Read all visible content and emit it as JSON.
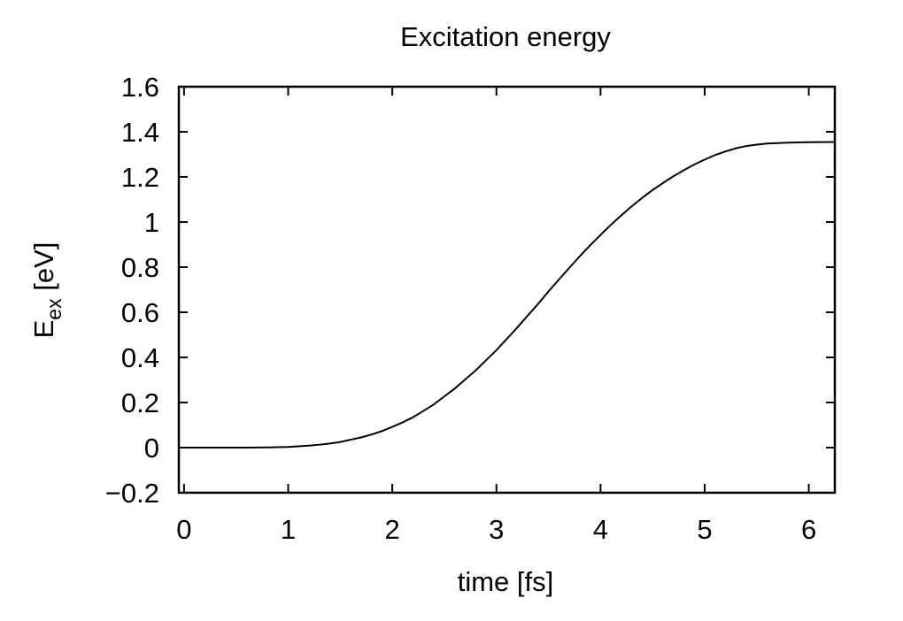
{
  "chart_data": {
    "type": "line",
    "title": "Excitation energy",
    "xlabel": "time [fs]",
    "ylabel": {
      "main": "E",
      "sub": "ex",
      "unit": " [eV]"
    },
    "xlim": [
      -0.05,
      6.25
    ],
    "ylim": [
      -0.2,
      1.6
    ],
    "xticks": [
      "0",
      "1",
      "2",
      "3",
      "4",
      "5",
      "6"
    ],
    "yticks": [
      "−0.2",
      "0",
      "0.2",
      "0.4",
      "0.6",
      "0.8",
      "1",
      "1.2",
      "1.4",
      "1.6"
    ],
    "grid": false,
    "series": [
      {
        "x": [
          0,
          0.2,
          0.4,
          0.6,
          0.8,
          1.0,
          1.1,
          1.2,
          1.3,
          1.4,
          1.5,
          1.6,
          1.7,
          1.8,
          1.9,
          2.0,
          2.1,
          2.2,
          2.3,
          2.4,
          2.5,
          2.6,
          2.7,
          2.8,
          2.9,
          3.0,
          3.1,
          3.2,
          3.3,
          3.4,
          3.5,
          3.6,
          3.7,
          3.8,
          3.9,
          4.0,
          4.1,
          4.2,
          4.3,
          4.4,
          4.5,
          4.6,
          4.7,
          4.8,
          4.9,
          5.0,
          5.1,
          5.2,
          5.3,
          5.4,
          5.5,
          5.6,
          5.8,
          6.0,
          6.25
        ],
        "y": [
          0.0,
          0.0,
          0.0,
          0.0,
          0.001,
          0.003,
          0.006,
          0.009,
          0.013,
          0.018,
          0.025,
          0.035,
          0.045,
          0.058,
          0.073,
          0.092,
          0.112,
          0.135,
          0.163,
          0.192,
          0.227,
          0.262,
          0.302,
          0.342,
          0.387,
          0.432,
          0.482,
          0.532,
          0.585,
          0.637,
          0.692,
          0.745,
          0.797,
          0.848,
          0.897,
          0.943,
          0.988,
          1.03,
          1.07,
          1.107,
          1.142,
          1.173,
          1.203,
          1.23,
          1.255,
          1.277,
          1.297,
          1.313,
          1.327,
          1.337,
          1.343,
          1.348,
          1.352,
          1.354,
          1.355
        ]
      }
    ]
  }
}
